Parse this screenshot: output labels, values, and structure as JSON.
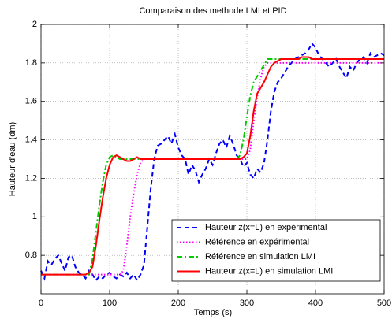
{
  "chart_data": {
    "type": "line",
    "title": "Comparaison des methode LMI et PID",
    "x_label": "Temps (s)",
    "y_label": "Hauteur d'eau (dm)",
    "x": [
      0,
      5,
      10,
      15,
      20,
      25,
      30,
      35,
      40,
      45,
      50,
      55,
      60,
      65,
      70,
      75,
      80,
      85,
      90,
      95,
      100,
      105,
      110,
      115,
      120,
      125,
      130,
      135,
      140,
      145,
      150,
      155,
      160,
      165,
      170,
      175,
      180,
      185,
      190,
      195,
      200,
      205,
      210,
      215,
      220,
      225,
      230,
      235,
      240,
      245,
      250,
      255,
      260,
      265,
      270,
      275,
      280,
      285,
      290,
      295,
      300,
      305,
      310,
      315,
      320,
      325,
      330,
      335,
      340,
      345,
      350,
      355,
      360,
      365,
      370,
      375,
      380,
      385,
      390,
      395,
      400,
      405,
      410,
      415,
      420,
      425,
      430,
      435,
      440,
      445,
      450,
      455,
      460,
      465,
      470,
      475,
      480,
      485,
      490,
      495,
      500
    ],
    "series": [
      {
        "name": "Hauteur z(x=L) en expérimental",
        "color": "#0000ff",
        "linestyle": "--",
        "values": [
          0.72,
          0.68,
          0.77,
          0.75,
          0.78,
          0.8,
          0.76,
          0.72,
          0.79,
          0.8,
          0.74,
          0.71,
          0.7,
          0.68,
          0.72,
          0.7,
          0.67,
          0.69,
          0.68,
          0.7,
          0.71,
          0.69,
          0.68,
          0.7,
          0.69,
          0.71,
          0.68,
          0.7,
          0.67,
          0.7,
          0.75,
          0.95,
          1.15,
          1.3,
          1.37,
          1.38,
          1.4,
          1.42,
          1.38,
          1.43,
          1.36,
          1.32,
          1.3,
          1.22,
          1.27,
          1.24,
          1.18,
          1.22,
          1.25,
          1.3,
          1.27,
          1.33,
          1.38,
          1.4,
          1.36,
          1.42,
          1.38,
          1.32,
          1.3,
          1.26,
          1.28,
          1.22,
          1.2,
          1.25,
          1.23,
          1.28,
          1.4,
          1.55,
          1.65,
          1.7,
          1.72,
          1.75,
          1.78,
          1.8,
          1.82,
          1.83,
          1.84,
          1.85,
          1.87,
          1.9,
          1.88,
          1.84,
          1.82,
          1.8,
          1.78,
          1.8,
          1.82,
          1.78,
          1.75,
          1.72,
          1.78,
          1.76,
          1.8,
          1.82,
          1.83,
          1.8,
          1.85,
          1.83,
          1.84,
          1.85,
          1.84
        ]
      },
      {
        "name": "Référence en expérimental",
        "color": "#ff00ff",
        "linestyle": ":",
        "values": [
          0.7,
          0.7,
          0.7,
          0.7,
          0.7,
          0.7,
          0.7,
          0.7,
          0.7,
          0.7,
          0.7,
          0.7,
          0.7,
          0.7,
          0.7,
          0.7,
          0.7,
          0.7,
          0.7,
          0.7,
          0.7,
          0.7,
          0.7,
          0.7,
          0.72,
          0.85,
          1.0,
          1.12,
          1.22,
          1.28,
          1.3,
          1.3,
          1.3,
          1.3,
          1.3,
          1.3,
          1.3,
          1.3,
          1.3,
          1.3,
          1.3,
          1.3,
          1.3,
          1.3,
          1.3,
          1.3,
          1.3,
          1.3,
          1.3,
          1.3,
          1.3,
          1.3,
          1.3,
          1.3,
          1.3,
          1.3,
          1.3,
          1.3,
          1.3,
          1.3,
          1.3,
          1.35,
          1.5,
          1.62,
          1.72,
          1.78,
          1.8,
          1.8,
          1.8,
          1.8,
          1.8,
          1.8,
          1.8,
          1.8,
          1.8,
          1.8,
          1.8,
          1.8,
          1.8,
          1.8,
          1.8,
          1.8,
          1.8,
          1.8,
          1.8,
          1.8,
          1.8,
          1.8,
          1.8,
          1.8,
          1.8,
          1.8,
          1.8,
          1.8,
          1.8,
          1.8,
          1.8,
          1.8,
          1.8,
          1.8,
          1.8
        ]
      },
      {
        "name": "Référence en simulation LMI",
        "color": "#00cc00",
        "linestyle": "-.",
        "values": [
          0.7,
          0.7,
          0.7,
          0.7,
          0.7,
          0.7,
          0.7,
          0.7,
          0.7,
          0.7,
          0.7,
          0.7,
          0.7,
          0.7,
          0.7,
          0.78,
          0.92,
          1.06,
          1.18,
          1.27,
          1.31,
          1.32,
          1.31,
          1.3,
          1.3,
          1.3,
          1.3,
          1.3,
          1.3,
          1.3,
          1.3,
          1.3,
          1.3,
          1.3,
          1.3,
          1.3,
          1.3,
          1.3,
          1.3,
          1.3,
          1.3,
          1.3,
          1.3,
          1.3,
          1.3,
          1.3,
          1.3,
          1.3,
          1.3,
          1.3,
          1.3,
          1.3,
          1.3,
          1.3,
          1.3,
          1.3,
          1.3,
          1.3,
          1.32,
          1.4,
          1.52,
          1.63,
          1.7,
          1.73,
          1.76,
          1.79,
          1.82,
          1.82,
          1.82,
          1.82,
          1.82,
          1.82,
          1.82,
          1.82,
          1.82,
          1.82,
          1.82,
          1.82,
          1.82,
          1.82,
          1.82,
          1.82,
          1.82,
          1.82,
          1.82,
          1.82,
          1.82,
          1.82,
          1.82,
          1.82,
          1.82,
          1.82,
          1.82,
          1.82,
          1.82,
          1.82,
          1.82,
          1.82,
          1.82,
          1.82,
          1.82
        ]
      },
      {
        "name": "Hauteur z(x=L) en simulation LMI",
        "color": "#ff0000",
        "linestyle": "-",
        "values": [
          0.7,
          0.7,
          0.7,
          0.7,
          0.7,
          0.7,
          0.7,
          0.7,
          0.7,
          0.7,
          0.7,
          0.7,
          0.7,
          0.7,
          0.71,
          0.74,
          0.85,
          0.98,
          1.1,
          1.2,
          1.27,
          1.31,
          1.32,
          1.31,
          1.3,
          1.29,
          1.29,
          1.3,
          1.31,
          1.3,
          1.3,
          1.3,
          1.3,
          1.3,
          1.3,
          1.3,
          1.3,
          1.3,
          1.3,
          1.3,
          1.3,
          1.3,
          1.3,
          1.3,
          1.3,
          1.3,
          1.3,
          1.3,
          1.3,
          1.3,
          1.3,
          1.3,
          1.3,
          1.3,
          1.3,
          1.3,
          1.3,
          1.3,
          1.3,
          1.31,
          1.33,
          1.42,
          1.55,
          1.64,
          1.67,
          1.7,
          1.74,
          1.78,
          1.8,
          1.81,
          1.82,
          1.82,
          1.82,
          1.82,
          1.82,
          1.82,
          1.83,
          1.83,
          1.83,
          1.82,
          1.82,
          1.82,
          1.82,
          1.82,
          1.82,
          1.82,
          1.82,
          1.82,
          1.82,
          1.82,
          1.82,
          1.82,
          1.82,
          1.82,
          1.82,
          1.82,
          1.82,
          1.82,
          1.82,
          1.82,
          1.82
        ]
      }
    ],
    "xlim": [
      0,
      500
    ],
    "xticks": [
      0,
      100,
      200,
      300,
      400,
      500
    ],
    "ylim": [
      0.6,
      2
    ],
    "yticks": [
      0.8,
      1,
      1.2,
      1.4,
      1.6,
      1.8,
      2
    ],
    "grid": true,
    "legend": "lower right"
  }
}
